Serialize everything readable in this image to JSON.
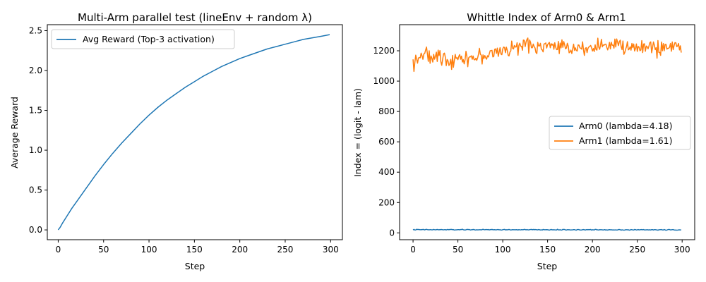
{
  "chart_data": [
    {
      "type": "line",
      "title": "Multi-Arm parallel test (lineEnv + random λ)",
      "xlabel": "Step",
      "ylabel": "Average Reward",
      "xlim": [
        -12,
        313
      ],
      "ylim": [
        -0.123,
        2.575
      ],
      "xticks": [
        0,
        50,
        100,
        150,
        200,
        250,
        300
      ],
      "xtick_labels": [
        "0",
        "50",
        "100",
        "150",
        "200",
        "250",
        "300"
      ],
      "yticks": [
        0.0,
        0.5,
        1.0,
        1.5,
        2.0,
        2.5
      ],
      "ytick_labels": [
        "0.0",
        "0.5",
        "1.0",
        "1.5",
        "2.0",
        "2.5"
      ],
      "legend_position": "upper-left",
      "grid": false,
      "series": [
        {
          "name": "Avg Reward (Top-3 activation)",
          "color": "#1f77b4",
          "x": [
            0,
            2,
            5,
            10,
            15,
            20,
            30,
            40,
            50,
            60,
            70,
            80,
            90,
            100,
            110,
            120,
            130,
            140,
            150,
            160,
            170,
            180,
            190,
            200,
            210,
            220,
            230,
            240,
            250,
            260,
            270,
            280,
            290,
            299
          ],
          "values": [
            0.0,
            0.03,
            0.09,
            0.18,
            0.27,
            0.35,
            0.51,
            0.67,
            0.82,
            0.96,
            1.09,
            1.21,
            1.33,
            1.44,
            1.54,
            1.63,
            1.71,
            1.79,
            1.86,
            1.93,
            1.99,
            2.05,
            2.1,
            2.15,
            2.19,
            2.23,
            2.27,
            2.3,
            2.33,
            2.36,
            2.39,
            2.41,
            2.43,
            2.45
          ]
        }
      ]
    },
    {
      "type": "line",
      "title": "Whittle Index of Arm0 & Arm1",
      "xlabel": "Step",
      "ylabel": "Index = (logit - lam)",
      "xlim": [
        -15,
        314
      ],
      "ylim": [
        -45,
        1372
      ],
      "xticks": [
        0,
        50,
        100,
        150,
        200,
        250,
        300
      ],
      "xtick_labels": [
        "0",
        "50",
        "100",
        "150",
        "200",
        "250",
        "300"
      ],
      "yticks": [
        0,
        200,
        400,
        600,
        800,
        1000,
        1200
      ],
      "ytick_labels": [
        "0",
        "200",
        "400",
        "600",
        "800",
        "1000",
        "1200"
      ],
      "legend_position": "center-right",
      "grid": false,
      "series": [
        {
          "name": "Arm0 (lambda=4.18)",
          "color": "#1f77b4",
          "noise_amplitude": 2,
          "x": [
            0,
            299
          ],
          "values": [
            21,
            20
          ]
        },
        {
          "name": "Arm1 (lambda=1.61)",
          "color": "#ff7f0e",
          "noise_amplitude": 38,
          "x": [
            0,
            5,
            10,
            20,
            30,
            40,
            50,
            60,
            70,
            80,
            90,
            100,
            110,
            120,
            130,
            140,
            150,
            160,
            170,
            180,
            190,
            200,
            210,
            220,
            230,
            240,
            250,
            260,
            270,
            280,
            290,
            299
          ],
          "values": [
            1120,
            1160,
            1175,
            1155,
            1160,
            1140,
            1155,
            1160,
            1150,
            1170,
            1185,
            1200,
            1215,
            1225,
            1240,
            1235,
            1230,
            1225,
            1225,
            1225,
            1220,
            1230,
            1235,
            1235,
            1230,
            1225,
            1220,
            1220,
            1220,
            1225,
            1225,
            1230
          ]
        }
      ]
    }
  ]
}
